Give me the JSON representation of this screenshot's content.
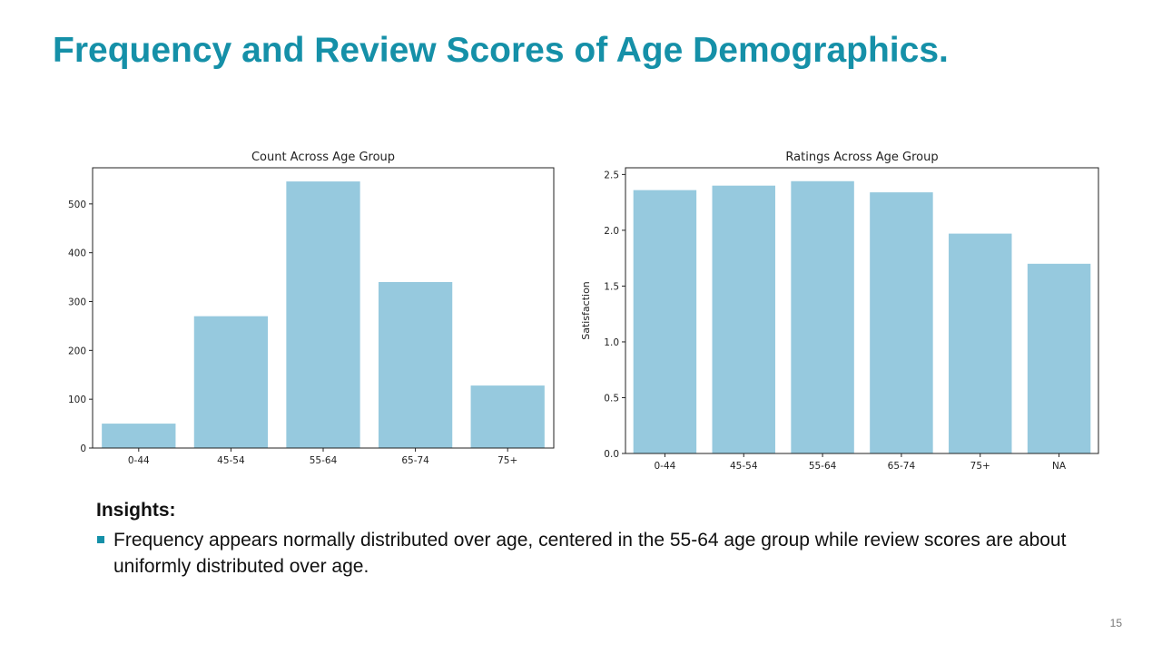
{
  "slide": {
    "title": "Frequency and Review Scores of Age Demographics.",
    "page_number": "15",
    "accent_color": "#1590a8",
    "bar_color": "#96c9de"
  },
  "insights": {
    "heading": "Insights:",
    "items": [
      "Frequency appears normally distributed over age, centered in the 55-64 age group while review scores are about uniformly distributed over age."
    ]
  },
  "chart_data": [
    {
      "type": "bar",
      "title": "Count Across Age Group",
      "xlabel": "",
      "ylabel": "",
      "categories": [
        "0-44",
        "45-54",
        "55-64",
        "65-74",
        "75+"
      ],
      "values": [
        50,
        270,
        546,
        340,
        128
      ],
      "ylim": [
        0,
        574
      ],
      "yticks": [
        0,
        100,
        200,
        300,
        400,
        500
      ],
      "ytick_labels": [
        "0",
        "100",
        "200",
        "300",
        "400",
        "500"
      ],
      "grid": false,
      "legend": "none"
    },
    {
      "type": "bar",
      "title": "Ratings Across Age Group",
      "xlabel": "",
      "ylabel": "Satisfaction",
      "categories": [
        "0-44",
        "45-54",
        "55-64",
        "65-74",
        "75+",
        "NA"
      ],
      "values": [
        2.36,
        2.4,
        2.44,
        2.34,
        1.97,
        1.7
      ],
      "ylim": [
        0,
        2.56
      ],
      "yticks": [
        0,
        0.5,
        1.0,
        1.5,
        2.0,
        2.5
      ],
      "ytick_labels": [
        "0.0",
        "0.5",
        "1.0",
        "1.5",
        "2.0",
        "2.5"
      ],
      "grid": false,
      "legend": "none"
    }
  ]
}
